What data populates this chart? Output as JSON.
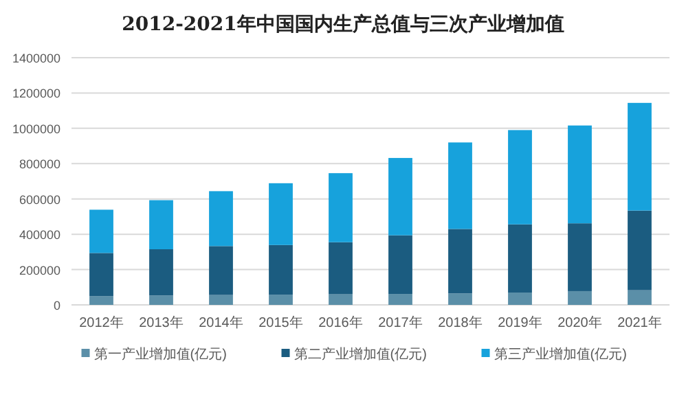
{
  "chart_data": {
    "type": "bar",
    "title": "2012-2021年中国国内生产总值与三次产业增加值",
    "stacked": true,
    "legend": "bottom",
    "grid": "y",
    "categories": [
      "2012年",
      "2013年",
      "2014年",
      "2015年",
      "2016年",
      "2017年",
      "2018年",
      "2019年",
      "2020年",
      "2021年"
    ],
    "series": [
      {
        "name": "第一产业增加值(亿元)",
        "color": "#5b8fa8",
        "values": [
          49000,
          53000,
          56000,
          58000,
          60000,
          62000,
          65000,
          70000,
          78000,
          83000
        ]
      },
      {
        "name": "第二产业增加值(亿元)",
        "color": "#1b5c80",
        "values": [
          245000,
          262000,
          277000,
          281000,
          295000,
          332000,
          365000,
          386000,
          384000,
          451000
        ]
      },
      {
        "name": "第三产业增加值(亿元)",
        "color": "#17a2dc",
        "values": [
          245000,
          278000,
          311000,
          350000,
          391000,
          438000,
          490000,
          534000,
          554000,
          610000
        ]
      }
    ],
    "ylim": [
      0,
      1400000
    ],
    "yticks": [
      0,
      200000,
      400000,
      600000,
      800000,
      1000000,
      1200000,
      1400000
    ]
  }
}
